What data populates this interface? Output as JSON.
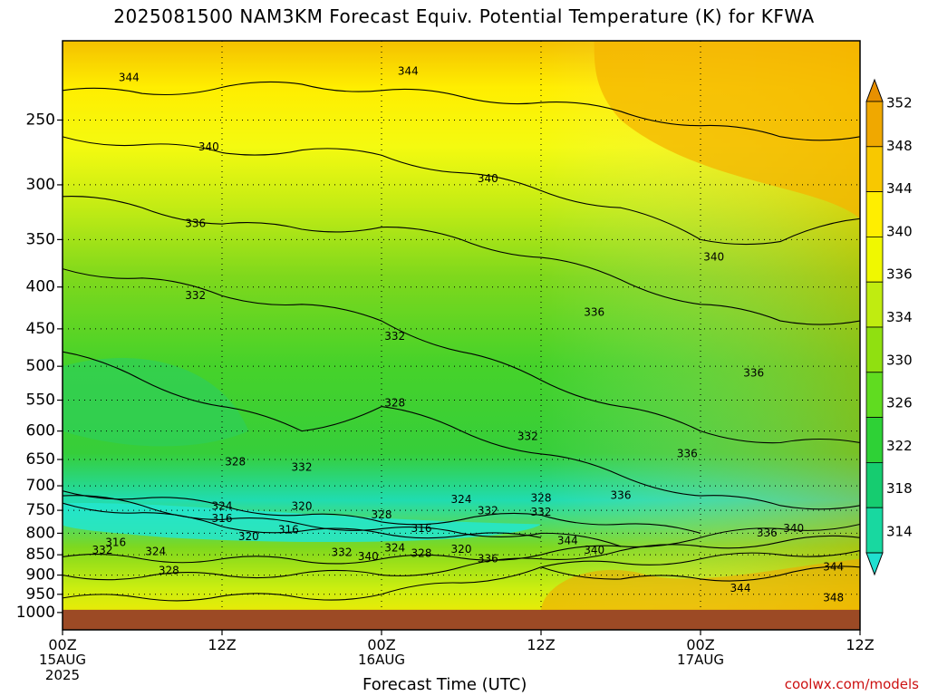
{
  "title": "2025081500 NAM3KM Forecast Equiv. Potential Temperature (K) for KFWA",
  "credit": "coolwx.com/models",
  "colors": {
    "underground": "#9c4a25",
    "frame": "#000000"
  },
  "chart_data": {
    "type": "heatmap",
    "title": "2025081500 NAM3KM Forecast Equiv. Potential Temperature (K) for KFWA",
    "xlabel": "Forecast Time (UTC)",
    "ylabel": "",
    "y_scale": "log pressure (hPa), inverted",
    "ylim": [
      1050,
      200
    ],
    "xlim_hours": [
      0,
      60
    ],
    "y_ticks": [
      250,
      300,
      350,
      400,
      450,
      500,
      550,
      600,
      650,
      700,
      750,
      800,
      850,
      900,
      950,
      1000
    ],
    "x_ticks": [
      {
        "hour": 0,
        "label": "00Z",
        "sub": "15AUG",
        "sub2": "2025"
      },
      {
        "hour": 12,
        "label": "12Z",
        "sub": "",
        "sub2": ""
      },
      {
        "hour": 24,
        "label": "00Z",
        "sub": "16AUG",
        "sub2": ""
      },
      {
        "hour": 36,
        "label": "12Z",
        "sub": "",
        "sub2": ""
      },
      {
        "hour": 48,
        "label": "00Z",
        "sub": "17AUG",
        "sub2": ""
      },
      {
        "hour": 60,
        "label": "12Z",
        "sub": "",
        "sub2": ""
      }
    ],
    "grid": true,
    "colorbar": {
      "levels": [
        314,
        318,
        322,
        326,
        330,
        334,
        336,
        340,
        344,
        348,
        352
      ],
      "colors": [
        "#20e0d0",
        "#18d8a0",
        "#16cc70",
        "#2ed136",
        "#60dc20",
        "#90e010",
        "#c0ec10",
        "#f0f800",
        "#ffee00",
        "#f8c800",
        "#f0a800",
        "#e89000"
      ],
      "extend": "both",
      "placement": "right"
    },
    "series": [
      {
        "name": "344",
        "x": [
          0,
          6,
          12,
          18,
          24,
          30,
          36,
          42,
          48,
          54,
          60
        ],
        "y": [
          230,
          232,
          228,
          226,
          230,
          234,
          238,
          244,
          254,
          262,
          262
        ]
      },
      {
        "name": "340",
        "x": [
          0,
          6,
          12,
          18,
          24,
          30,
          36,
          42,
          48,
          54,
          60
        ],
        "y": [
          262,
          268,
          274,
          272,
          276,
          290,
          305,
          320,
          350,
          352,
          330
        ]
      },
      {
        "name": "336",
        "x": [
          0,
          6,
          12,
          18,
          24,
          30,
          36,
          42,
          48,
          54,
          60
        ],
        "y": [
          310,
          320,
          335,
          340,
          338,
          350,
          368,
          392,
          420,
          440,
          440
        ]
      },
      {
        "name": "332",
        "x": [
          0,
          6,
          12,
          18,
          24,
          30,
          36,
          42,
          48,
          54,
          60
        ],
        "y": [
          380,
          390,
          410,
          420,
          440,
          480,
          520,
          560,
          600,
          620,
          620
        ]
      },
      {
        "name": "328",
        "x": [
          0,
          6,
          12,
          18,
          24,
          30,
          36,
          42,
          48,
          54,
          60
        ],
        "y": [
          480,
          520,
          560,
          600,
          560,
          600,
          640,
          680,
          720,
          740,
          740
        ]
      },
      {
        "name": "324",
        "x": [
          0,
          6,
          12,
          18,
          24,
          30,
          36,
          42,
          48
        ],
        "y": [
          710,
          725,
          740,
          760,
          775,
          770,
          760,
          780,
          800
        ]
      },
      {
        "name": "320",
        "x": [
          0,
          6,
          12,
          18,
          24,
          30,
          36,
          42
        ],
        "y": [
          720,
          740,
          770,
          780,
          790,
          800,
          800,
          830
        ]
      },
      {
        "name": "316",
        "x": [
          0,
          6,
          12,
          18,
          24,
          30,
          36
        ],
        "y": [
          735,
          755,
          785,
          795,
          800,
          805,
          810
        ]
      },
      {
        "name": "332 (low)",
        "x": [
          0,
          6,
          12,
          18,
          24,
          30,
          36,
          42,
          48,
          54,
          60
        ],
        "y": [
          855,
          860,
          860,
          865,
          860,
          858,
          850,
          830,
          810,
          790,
          780
        ]
      },
      {
        "name": "336 (low)",
        "x": [
          0,
          6,
          12,
          18,
          24,
          30,
          36,
          42,
          48,
          54,
          60
        ],
        "y": [
          900,
          905,
          900,
          895,
          900,
          880,
          860,
          840,
          830,
          820,
          810
        ]
      },
      {
        "name": "340 (low)",
        "x": [
          0,
          6,
          12,
          18,
          24,
          30,
          36,
          42,
          48,
          54,
          60
        ],
        "y": [
          960,
          960,
          955,
          960,
          950,
          920,
          880,
          870,
          860,
          850,
          840
        ]
      },
      {
        "name": "344 (low)",
        "x": [
          36,
          42,
          48,
          54,
          60
        ],
        "y": [
          880,
          910,
          910,
          900,
          880
        ]
      }
    ],
    "contour_labels": [
      {
        "text": "344",
        "hour": 5,
        "p": 222
      },
      {
        "text": "344",
        "hour": 26,
        "p": 218
      },
      {
        "text": "340",
        "hour": 11,
        "p": 270
      },
      {
        "text": "340",
        "hour": 32,
        "p": 295
      },
      {
        "text": "340",
        "hour": 49,
        "p": 368
      },
      {
        "text": "336",
        "hour": 10,
        "p": 335
      },
      {
        "text": "336",
        "hour": 40,
        "p": 430
      },
      {
        "text": "336",
        "hour": 52,
        "p": 510
      },
      {
        "text": "336",
        "hour": 47,
        "p": 640
      },
      {
        "text": "336",
        "hour": 42,
        "p": 720
      },
      {
        "text": "336",
        "hour": 53,
        "p": 800
      },
      {
        "text": "336",
        "hour": 32,
        "p": 860
      },
      {
        "text": "332",
        "hour": 10,
        "p": 410
      },
      {
        "text": "332",
        "hour": 25,
        "p": 460
      },
      {
        "text": "332",
        "hour": 35,
        "p": 610
      },
      {
        "text": "332",
        "hour": 18,
        "p": 665
      },
      {
        "text": "332",
        "hour": 36,
        "p": 755
      },
      {
        "text": "332",
        "hour": 32,
        "p": 752
      },
      {
        "text": "332",
        "hour": 3,
        "p": 840
      },
      {
        "text": "332",
        "hour": 21,
        "p": 845
      },
      {
        "text": "328",
        "hour": 25,
        "p": 555
      },
      {
        "text": "328",
        "hour": 13,
        "p": 655
      },
      {
        "text": "328",
        "hour": 36,
        "p": 725
      },
      {
        "text": "328",
        "hour": 24,
        "p": 760
      },
      {
        "text": "328",
        "hour": 27,
        "p": 848
      },
      {
        "text": "328",
        "hour": 8,
        "p": 890
      },
      {
        "text": "324",
        "hour": 12,
        "p": 742
      },
      {
        "text": "324",
        "hour": 30,
        "p": 728
      },
      {
        "text": "324",
        "hour": 25,
        "p": 835
      },
      {
        "text": "324",
        "hour": 7,
        "p": 843
      },
      {
        "text": "320",
        "hour": 18,
        "p": 742
      },
      {
        "text": "320",
        "hour": 14,
        "p": 808
      },
      {
        "text": "320",
        "hour": 30,
        "p": 838
      },
      {
        "text": "316",
        "hour": 12,
        "p": 768
      },
      {
        "text": "316",
        "hour": 17,
        "p": 793
      },
      {
        "text": "316",
        "hour": 4,
        "p": 822
      },
      {
        "text": "316",
        "hour": 27,
        "p": 790
      },
      {
        "text": "344",
        "hour": 38,
        "p": 818
      },
      {
        "text": "340",
        "hour": 40,
        "p": 840
      },
      {
        "text": "340",
        "hour": 55,
        "p": 790
      },
      {
        "text": "340",
        "hour": 23,
        "p": 855
      },
      {
        "text": "344",
        "hour": 58,
        "p": 880
      },
      {
        "text": "344",
        "hour": 51,
        "p": 935
      },
      {
        "text": "348",
        "hour": 58,
        "p": 960
      }
    ]
  }
}
